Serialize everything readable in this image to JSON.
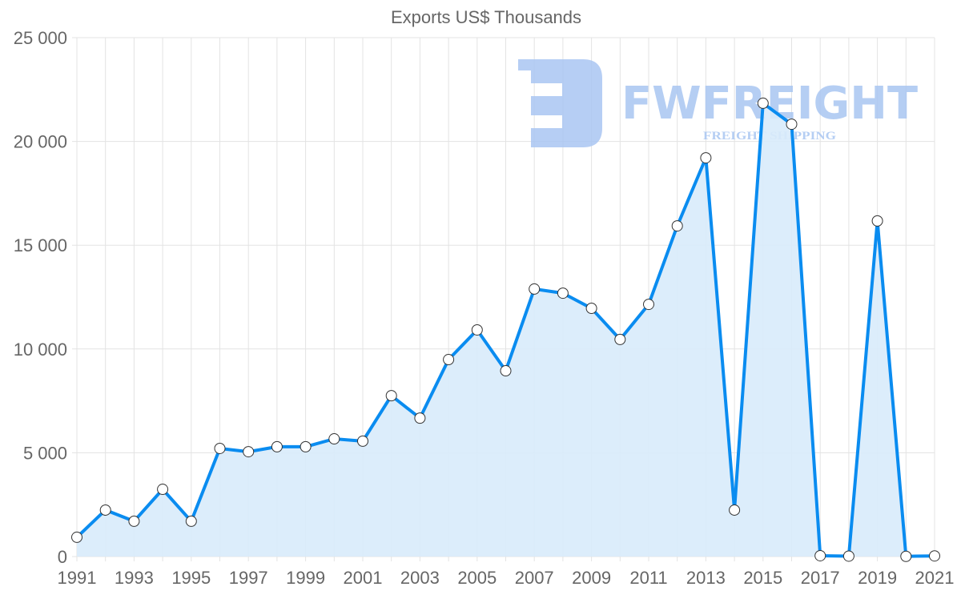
{
  "chart_data": {
    "type": "line",
    "title": "Exports US$ Thousands",
    "xlabel": "",
    "ylabel": "",
    "x": [
      1991,
      1992,
      1993,
      1994,
      1995,
      1996,
      1997,
      1998,
      1999,
      2000,
      2001,
      2002,
      2003,
      2004,
      2005,
      2006,
      2007,
      2008,
      2009,
      2010,
      2011,
      2012,
      2013,
      2014,
      2015,
      2016,
      2017,
      2018,
      2019,
      2020,
      2021
    ],
    "series": [
      {
        "name": "Exports US$ Thousands",
        "values": [
          930,
          2240,
          1700,
          3240,
          1700,
          5210,
          5050,
          5290,
          5290,
          5670,
          5560,
          7750,
          6670,
          9490,
          10920,
          8950,
          12890,
          12690,
          11960,
          10460,
          12150,
          15930,
          19210,
          2240,
          21840,
          20830,
          40,
          20,
          16170,
          10,
          30
        ]
      }
    ],
    "ylim": [
      0,
      25000
    ],
    "xlim": [
      1991,
      2021
    ],
    "yticks": [
      "0",
      "5 000",
      "10 000",
      "15 000",
      "20 000",
      "25 000"
    ],
    "xticks": [
      "1991",
      "1993",
      "1995",
      "1997",
      "1999",
      "2001",
      "2003",
      "2005",
      "2007",
      "2009",
      "2011",
      "2013",
      "2015",
      "2017",
      "2019",
      "2021"
    ],
    "grid": true,
    "legend": "none",
    "colors": {
      "line": "#0a8cf0",
      "fill": "#d8ebfb",
      "grid": "#e3e3e3"
    }
  },
  "watermark": {
    "brand": "FWFREIGHT",
    "tagline": "FREIGHT SHIPPING",
    "color": "#a9c6f2"
  }
}
